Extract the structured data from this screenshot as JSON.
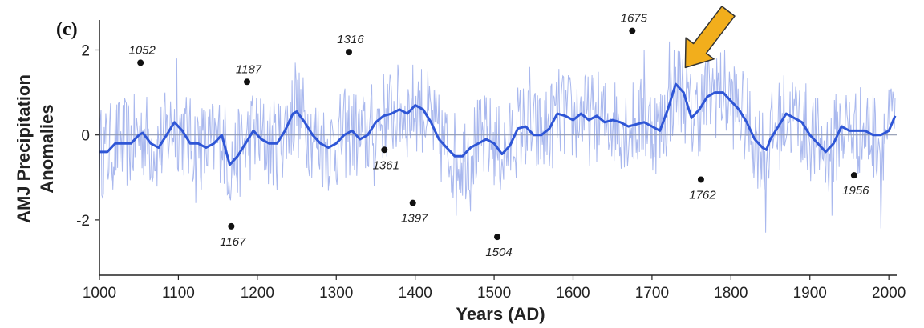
{
  "panel_label": "(c)",
  "chart_data": {
    "type": "line",
    "title": "",
    "xlabel": "Years (AD)",
    "ylabel": [
      "AMJ Precipitation",
      "Anomalies"
    ],
    "xlim": [
      1000,
      2010
    ],
    "ylim": [
      -3,
      2.8
    ],
    "xticks": [
      1000,
      1100,
      1200,
      1300,
      1400,
      1500,
      1600,
      1700,
      1800,
      1900,
      2000
    ],
    "yticks": [
      -2,
      0,
      2
    ],
    "zero_line": true,
    "grid": false,
    "colors": {
      "smooth_line": "#2f56d6",
      "annual_line": "#a9b8ee",
      "zero_line": "#8f98b0",
      "arrow": "#f2ae1c"
    },
    "series": [
      {
        "style": "smoothed",
        "x": [
          1000,
          1010,
          1020,
          1030,
          1040,
          1050,
          1055,
          1065,
          1075,
          1085,
          1095,
          1105,
          1115,
          1125,
          1135,
          1145,
          1155,
          1165,
          1175,
          1185,
          1195,
          1205,
          1215,
          1225,
          1235,
          1245,
          1250,
          1260,
          1270,
          1280,
          1290,
          1300,
          1310,
          1320,
          1330,
          1340,
          1350,
          1360,
          1370,
          1380,
          1390,
          1400,
          1410,
          1420,
          1430,
          1440,
          1450,
          1460,
          1470,
          1480,
          1490,
          1500,
          1510,
          1520,
          1530,
          1540,
          1550,
          1560,
          1570,
          1580,
          1590,
          1600,
          1610,
          1620,
          1630,
          1640,
          1650,
          1660,
          1670,
          1680,
          1690,
          1700,
          1710,
          1720,
          1730,
          1740,
          1750,
          1760,
          1770,
          1780,
          1790,
          1800,
          1810,
          1820,
          1830,
          1840,
          1845,
          1850,
          1860,
          1870,
          1880,
          1890,
          1900,
          1910,
          1920,
          1930,
          1940,
          1950,
          1960,
          1970,
          1980,
          1990,
          2000,
          2008
        ],
        "y": [
          -0.4,
          -0.4,
          -0.2,
          -0.2,
          -0.2,
          0.0,
          0.05,
          -0.2,
          -0.3,
          0.0,
          0.3,
          0.1,
          -0.2,
          -0.2,
          -0.3,
          -0.2,
          0.0,
          -0.7,
          -0.5,
          -0.2,
          0.1,
          -0.1,
          -0.2,
          -0.2,
          0.1,
          0.5,
          0.55,
          0.3,
          0.0,
          -0.2,
          -0.3,
          -0.2,
          0.0,
          0.1,
          -0.1,
          0.0,
          0.3,
          0.45,
          0.5,
          0.6,
          0.5,
          0.7,
          0.6,
          0.3,
          -0.1,
          -0.3,
          -0.5,
          -0.5,
          -0.3,
          -0.2,
          -0.1,
          -0.2,
          -0.45,
          -0.25,
          0.15,
          0.2,
          0.0,
          0.0,
          0.15,
          0.5,
          0.45,
          0.35,
          0.5,
          0.35,
          0.45,
          0.3,
          0.35,
          0.3,
          0.2,
          0.25,
          0.3,
          0.2,
          0.1,
          0.6,
          1.2,
          1.0,
          0.4,
          0.6,
          0.9,
          1.0,
          1.0,
          0.8,
          0.6,
          0.3,
          -0.1,
          -0.3,
          -0.35,
          -0.1,
          0.2,
          0.5,
          0.4,
          0.3,
          0.0,
          -0.2,
          -0.4,
          -0.2,
          0.2,
          0.1,
          0.1,
          0.1,
          0.0,
          0.0,
          0.1,
          0.45
        ]
      }
    ],
    "annual_series": {
      "style": "annual",
      "amplitude": 1.1,
      "spikes": [
        {
          "x": 1098,
          "y": 1.8
        },
        {
          "x": 1122,
          "y": -1.6
        },
        {
          "x": 1248,
          "y": 1.7
        },
        {
          "x": 1348,
          "y": -1.2
        },
        {
          "x": 1452,
          "y": -1.9
        },
        {
          "x": 1470,
          "y": -1.8
        },
        {
          "x": 1545,
          "y": 1.6
        },
        {
          "x": 1690,
          "y": 2.0
        },
        {
          "x": 1722,
          "y": 2.2
        },
        {
          "x": 1782,
          "y": 1.8
        },
        {
          "x": 1844,
          "y": -2.3
        },
        {
          "x": 1928,
          "y": -1.9
        },
        {
          "x": 1990,
          "y": -2.2
        }
      ]
    },
    "annotations": [
      {
        "year": 1052,
        "label": "1052",
        "y": 1.7,
        "label_pos": "above"
      },
      {
        "year": 1167,
        "label": "1167",
        "y": -2.15,
        "label_pos": "below"
      },
      {
        "year": 1187,
        "label": "1187",
        "y": 1.25,
        "label_pos": "above"
      },
      {
        "year": 1316,
        "label": "1316",
        "y": 1.95,
        "label_pos": "above"
      },
      {
        "year": 1361,
        "label": "1361",
        "y": -0.35,
        "label_pos": "below"
      },
      {
        "year": 1397,
        "label": "1397",
        "y": -1.6,
        "label_pos": "below"
      },
      {
        "year": 1504,
        "label": "1504",
        "y": -2.4,
        "label_pos": "below"
      },
      {
        "year": 1675,
        "label": "1675",
        "y": 2.45,
        "label_pos": "above"
      },
      {
        "year": 1762,
        "label": "1762",
        "y": -1.05,
        "label_pos": "below"
      },
      {
        "year": 1956,
        "label": "1956",
        "y": -0.95,
        "label_pos": "below"
      }
    ],
    "highlight_arrow": {
      "target_year": 1730,
      "target_y": 1.55,
      "color": "#f2ae1c"
    }
  }
}
